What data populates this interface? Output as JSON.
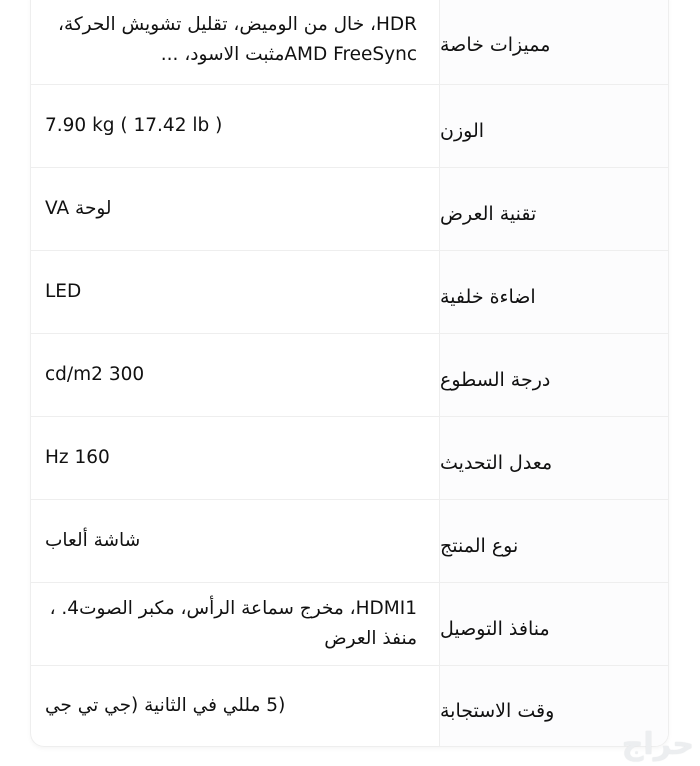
{
  "specs": [
    {
      "label": "مميزات خاصة",
      "value": "HDR، خال من الوميض، تقليل تشويش الحركة، AMD FreeSyncمثبت الاسود، ..."
    },
    {
      "label": "الوزن",
      "value": "7.90 kg ( 17.42 lb )"
    },
    {
      "label": "تقنية العرض",
      "value": "لوحة VA"
    },
    {
      "label": "اضاءة خلفية",
      "value": "LED"
    },
    {
      "label": "درجة السطوع",
      "value": "300 cd/m2"
    },
    {
      "label": "معدل التحديث",
      "value": "160 Hz"
    },
    {
      "label": "نوع المنتج",
      "value": "شاشة ألعاب"
    },
    {
      "label": "منافذ التوصيل",
      "value": "HDMI1، مخرج سماعة الرأس، مكبر الصوت4. ، منفذ العرض"
    },
    {
      "label": "وقت الاستجابة",
      "value": "(5 مللي في الثانية (جي تي جي"
    }
  ],
  "watermark": "حراج"
}
